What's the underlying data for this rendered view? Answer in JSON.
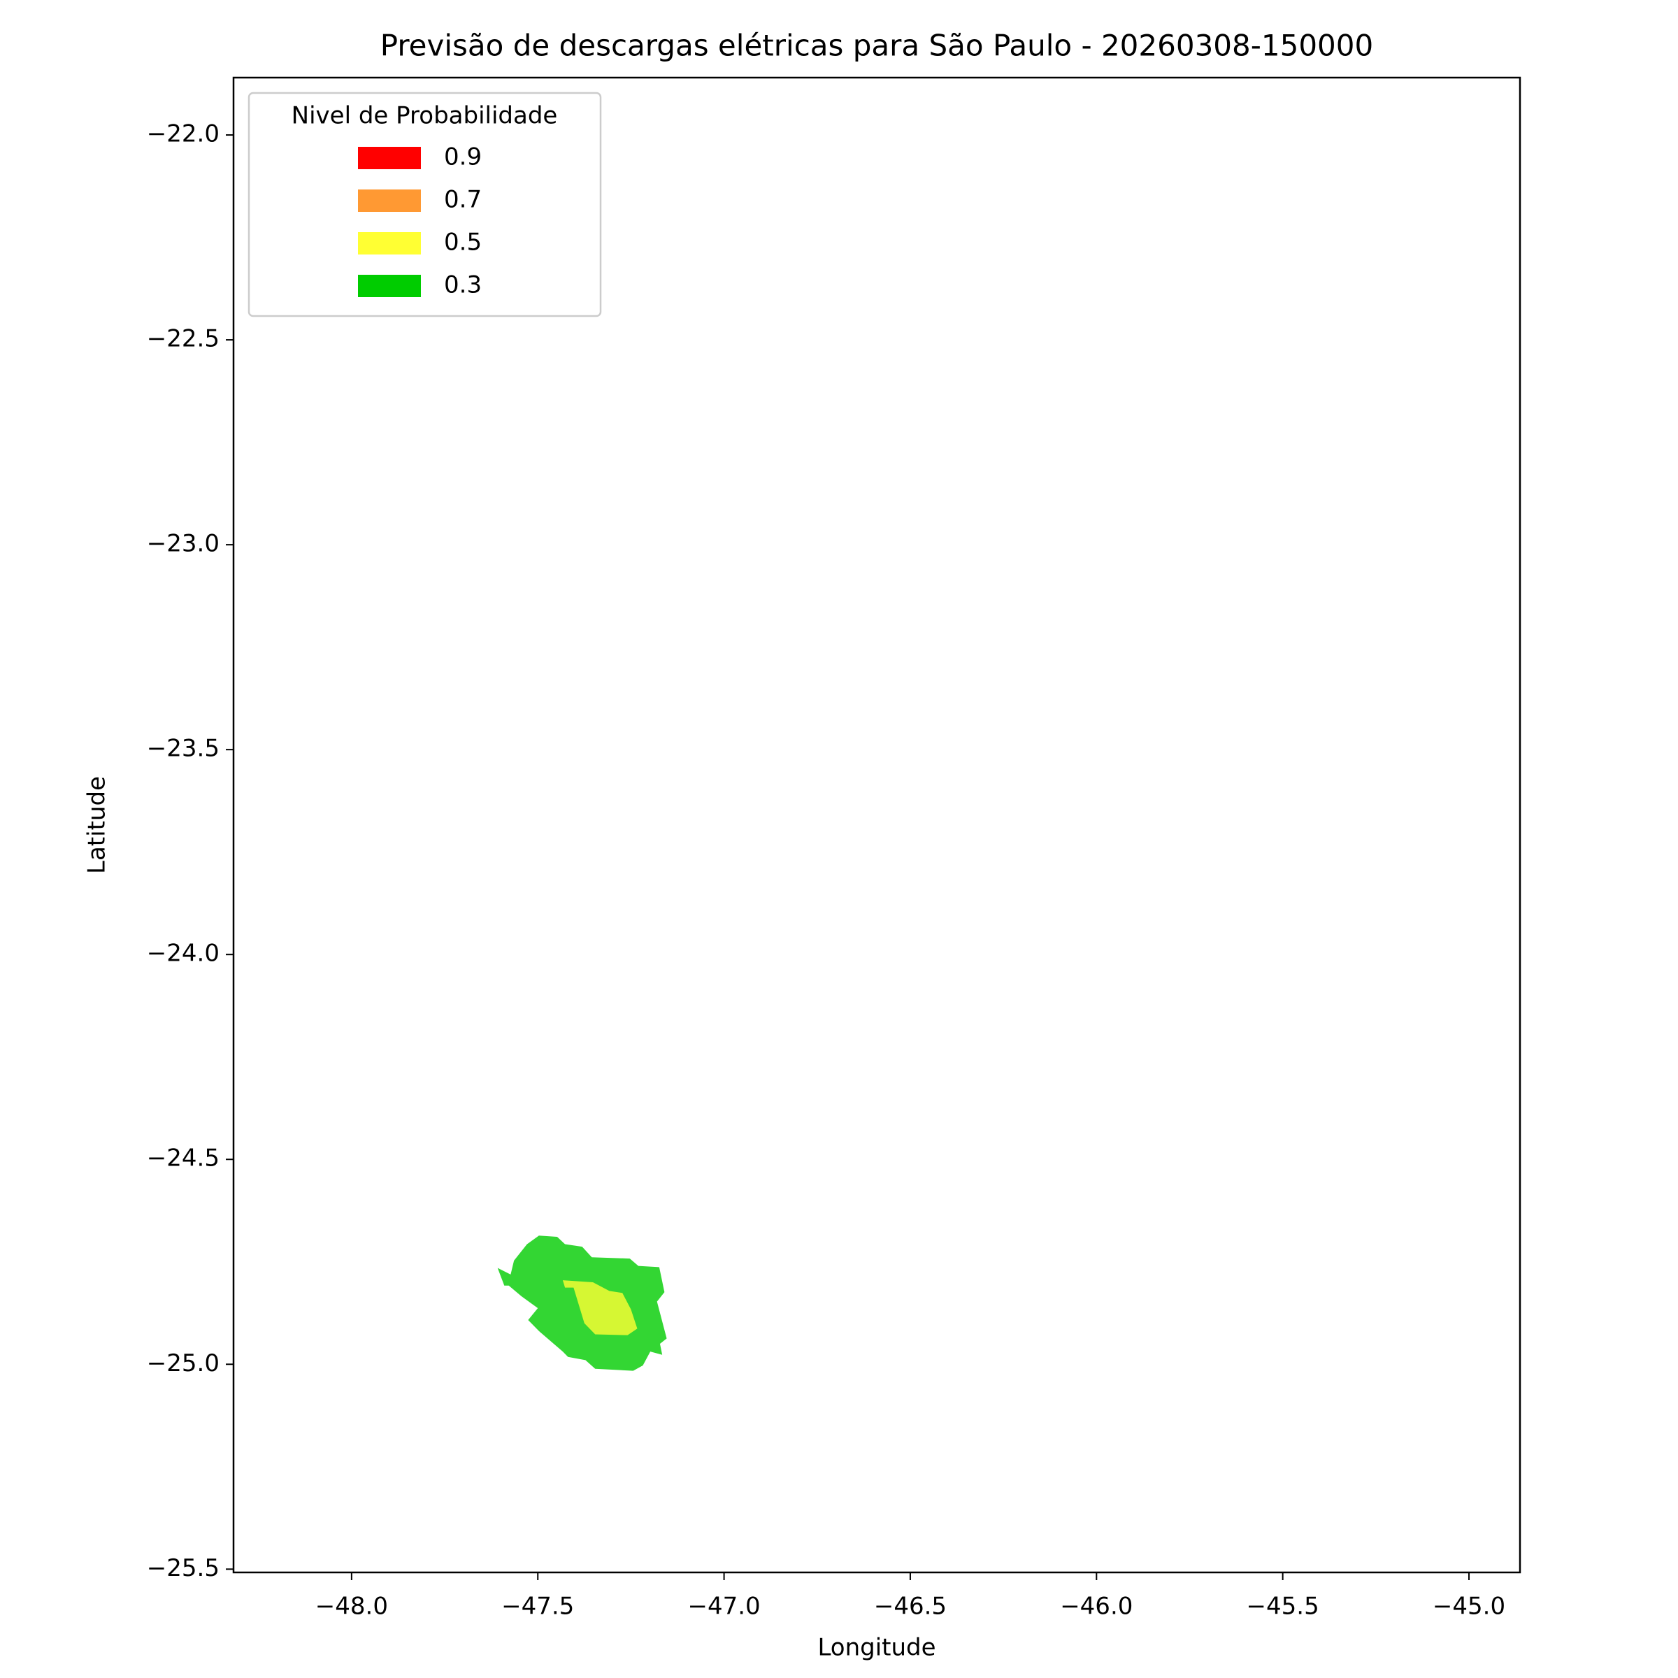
{
  "chart_data": {
    "type": "contour",
    "title": "Previsão de descargas elétricas para São Paulo - 20260308-150000",
    "x_label": "Longitude",
    "y_label": "Latitude",
    "xlim": [
      -48.317,
      -44.863
    ],
    "ylim": [
      -25.508,
      -21.86
    ],
    "xticks": [
      {
        "value": -48.0,
        "label": "−48.0"
      },
      {
        "value": -47.5,
        "label": "−47.5"
      },
      {
        "value": -47.0,
        "label": "−47.0"
      },
      {
        "value": -46.5,
        "label": "−46.5"
      },
      {
        "value": -46.0,
        "label": "−46.0"
      },
      {
        "value": -45.5,
        "label": "−45.5"
      },
      {
        "value": -45.0,
        "label": "−45.0"
      }
    ],
    "yticks": [
      {
        "value": -22.0,
        "label": "−22.0"
      },
      {
        "value": -22.5,
        "label": "−22.5"
      },
      {
        "value": -23.0,
        "label": "−23.0"
      },
      {
        "value": -23.5,
        "label": "−23.5"
      },
      {
        "value": -24.0,
        "label": "−24.0"
      },
      {
        "value": -24.5,
        "label": "−24.5"
      },
      {
        "value": -25.0,
        "label": "−25.0"
      },
      {
        "value": -25.5,
        "label": "−25.5"
      }
    ],
    "alpha": 0.8,
    "legend": {
      "title": "Nivel de Probabilidade",
      "location": "upper left"
    },
    "series": [
      {
        "name": "0.9",
        "color": "#ff0000",
        "x": [],
        "y": []
      },
      {
        "name": "0.7",
        "color": "#ff9933",
        "x": [],
        "y": []
      },
      {
        "name": "0.5",
        "color": "#ffff33",
        "x": [
          -47.433,
          -47.352,
          -47.308,
          -47.273,
          -47.25,
          -47.233,
          -47.259,
          -47.346,
          -47.375,
          -47.404,
          -47.427
        ],
        "y": [
          -24.795,
          -24.8,
          -24.821,
          -24.826,
          -24.866,
          -24.913,
          -24.929,
          -24.927,
          -24.9,
          -24.813,
          -24.813
        ]
      },
      {
        "name": "0.3",
        "color": "#00cc00",
        "x": [
          -47.564,
          -47.529,
          -47.497,
          -47.448,
          -47.427,
          -47.381,
          -47.355,
          -47.253,
          -47.23,
          -47.174,
          -47.16,
          -47.18,
          -47.154,
          -47.172,
          -47.166,
          -47.198,
          -47.218,
          -47.244,
          -47.346,
          -47.372,
          -47.419,
          -47.433,
          -47.497,
          -47.526,
          -47.5,
          -47.544,
          -47.578,
          -47.59,
          -47.608,
          -47.573
        ],
        "y": [
          -24.747,
          -24.707,
          -24.686,
          -24.689,
          -24.707,
          -24.713,
          -24.739,
          -24.742,
          -24.76,
          -24.763,
          -24.824,
          -24.847,
          -24.937,
          -24.95,
          -24.977,
          -24.969,
          -25.003,
          -25.016,
          -25.011,
          -24.99,
          -24.982,
          -24.969,
          -24.919,
          -24.892,
          -24.863,
          -24.834,
          -24.808,
          -24.808,
          -24.765,
          -24.781
        ]
      }
    ]
  }
}
